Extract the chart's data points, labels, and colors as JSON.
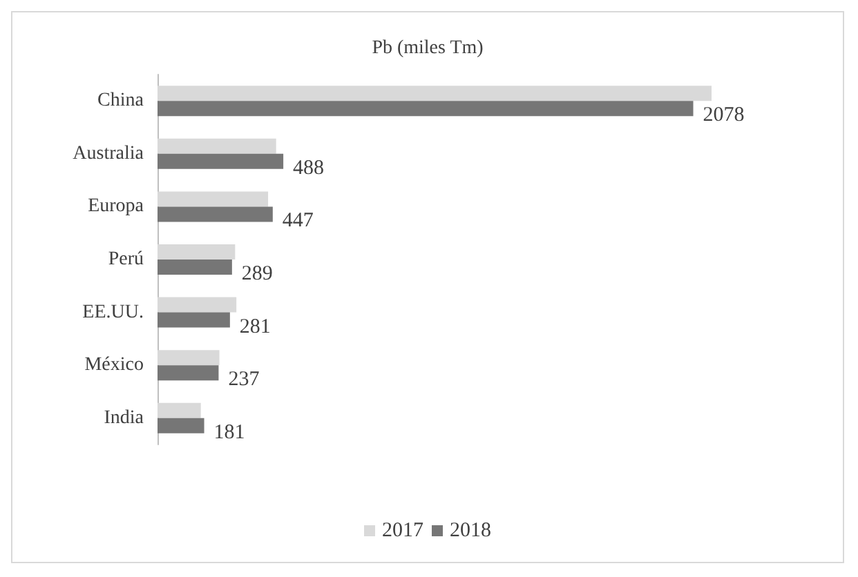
{
  "chart_data": {
    "type": "bar",
    "orientation": "horizontal",
    "title": "Pb (miles Tm)",
    "categories": [
      "China",
      "Australia",
      "Europa",
      "Perú",
      "EE.UU.",
      "México",
      "India"
    ],
    "series": [
      {
        "name": "2017",
        "color": "#d9d9d9",
        "values": [
          2149,
          460,
          429,
          301,
          306,
          240,
          168
        ],
        "value_labels": [
          null,
          null,
          null,
          null,
          null,
          null,
          null
        ]
      },
      {
        "name": "2018",
        "color": "#767676",
        "values": [
          2078,
          488,
          447,
          289,
          281,
          237,
          181
        ],
        "value_labels": [
          "2078",
          "488",
          "447",
          "289",
          "281",
          "237",
          "181"
        ]
      }
    ],
    "legend": "bottom"
  }
}
